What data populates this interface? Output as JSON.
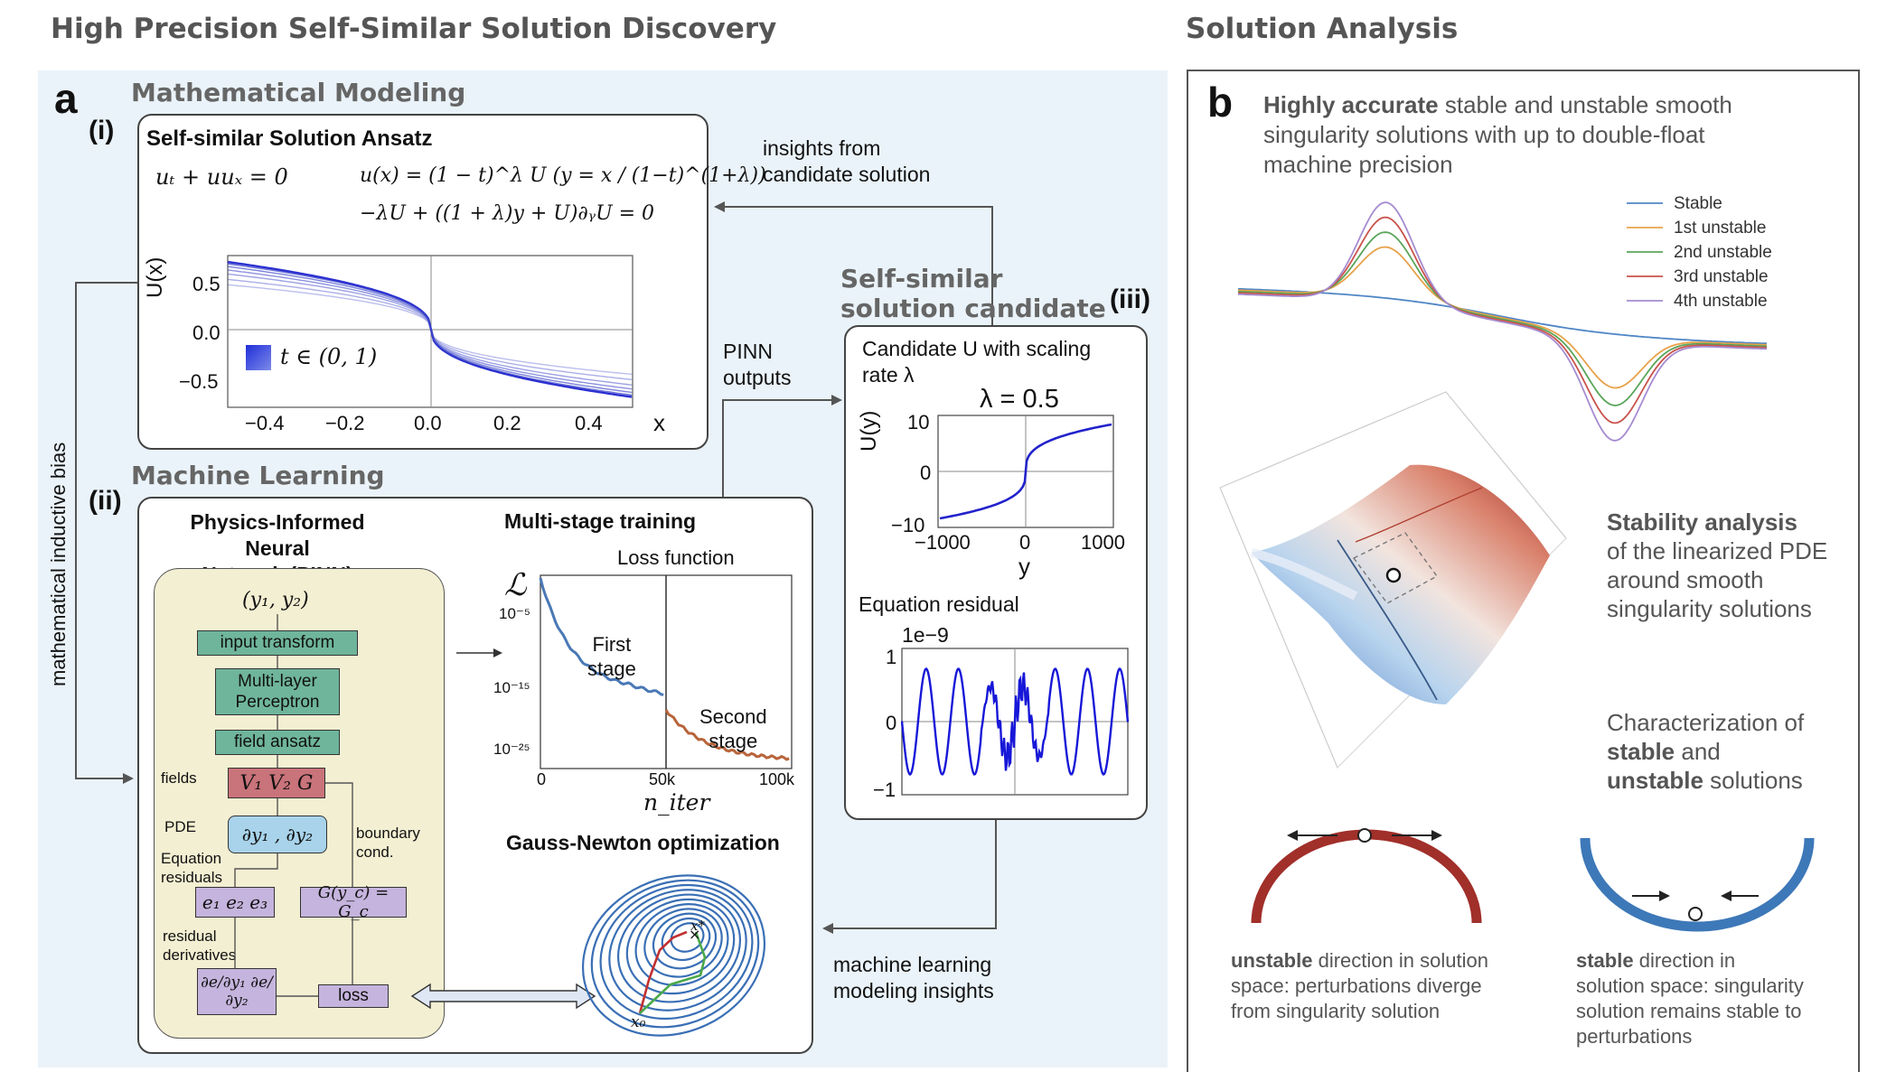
{
  "headers": {
    "left": "High Precision Self-Similar Solution Discovery",
    "right": "Solution Analysis"
  },
  "panel_a": {
    "letter": "a",
    "math_modeling": {
      "section_title": "Mathematical Modeling",
      "roman": "(i)",
      "box_title": "Self-similar Solution Ansatz",
      "eq1": "uₜ + uuₓ = 0",
      "eq2": "u(x) = (1 − t)^λ U (y = x / (1−t)^(1+λ))",
      "eq3": "−λU + ((1 + λ)y + U)∂ᵧU = 0",
      "plot": {
        "ylabel": "U(x)",
        "xlabel": "x",
        "legend": "t ∈ (0, 1)",
        "xticks": [
          "−0.4",
          "−0.2",
          "0.0",
          "0.2",
          "0.4"
        ],
        "yticks": [
          "0.5",
          "0.0",
          "−0.5"
        ]
      }
    },
    "side_label": "mathematical inductive bias",
    "insights_label": "insights from\ncandidate solution",
    "pinn_outputs_label": "PINN\noutputs",
    "ml_insights_label": "machine learning\nmodeling insights",
    "machine_learning": {
      "section_title": "Machine Learning",
      "roman": "(ii)",
      "pinn_title": "Physics-Informed Neural\nNetwork (PINN)",
      "inputs": "(y₁, y₂)",
      "blocks": {
        "input_transform": "input transform",
        "mlp": "Multi-layer\nPerceptron",
        "field_ansatz": "field ansatz",
        "fields": "V₁  V₂  G",
        "pde_op": "∂y₁ , ∂y₂",
        "residuals": "e₁  e₂  e₃",
        "boundary": "G(y_c) = G_c",
        "derivs": "∂e/∂y₁  ∂e/∂y₂",
        "loss": "loss"
      },
      "labels": {
        "fields": "fields",
        "pde": "PDE",
        "eq_residuals": "Equation\nresiduals",
        "boundary_cond": "boundary\ncond.",
        "residual_derivatives": "residual\nderivatives"
      },
      "multistage": {
        "title": "Multi-stage training",
        "subtitle": "Loss function",
        "ylabel": "ℒ",
        "xlabel": "n_iter",
        "yticks": [
          "10⁻⁵",
          "10⁻¹⁵",
          "10⁻²⁵"
        ],
        "xticks": [
          "0",
          "50k",
          "100k"
        ],
        "first_stage": "First\nstage",
        "second_stage": "Second\nstage"
      },
      "gauss_newton": {
        "title": "Gauss-Newton optimization",
        "x0": "x₀",
        "xstar": "x*"
      }
    },
    "candidate": {
      "section_title": "Self-similar\nsolution candidate",
      "roman": "(iii)",
      "box_title": "Candidate U with scaling\nrate λ",
      "plot_title": "λ = 0.5",
      "ylabel": "U(y)",
      "xlabel": "y",
      "xticks": [
        "−1000",
        "0",
        "1000"
      ],
      "yticks": [
        "10",
        "0",
        "−10"
      ],
      "residual_title": "Equation residual",
      "residual_scale": "1e−9",
      "residual_yticks": [
        "1",
        "0",
        "−1"
      ]
    }
  },
  "panel_b": {
    "letter": "b",
    "intro_bold": "Highly accurate",
    "intro_rest": "stable and unstable smooth\nsingularity solutions with up to double-float\nmachine precision",
    "legend": [
      {
        "name": "Stable",
        "color": "#4f86c6"
      },
      {
        "name": "1st unstable",
        "color": "#e8a24a"
      },
      {
        "name": "2nd unstable",
        "color": "#5aa55a"
      },
      {
        "name": "3rd unstable",
        "color": "#c9524c"
      },
      {
        "name": "4th unstable",
        "color": "#a58bd1"
      }
    ],
    "stability_bold": "Stability analysis",
    "stability_rest": "of the linearized PDE\naround smooth\nsingularity solutions",
    "char_line1": "Characterization of",
    "char_bold1": "stable",
    "char_and": "and",
    "char_bold2": "unstable",
    "char_solutions": "solutions",
    "unstable_bold": "unstable",
    "unstable_rest": "direction in solution\nspace: perturbations diverge\nfrom singularity solution",
    "stable_bold": "stable",
    "stable_rest": "direction in\nsolution space: singularity\nsolution remains stable to\nperturbations"
  },
  "colors": {
    "panel_bg": "#eaf3f9",
    "u_curves": "#2a2fd0",
    "loss_stage1": "#4a78b5",
    "loss_stage2": "#b8643a",
    "unstable_arc": "#a12f2a",
    "stable_arc": "#3d78b8"
  }
}
